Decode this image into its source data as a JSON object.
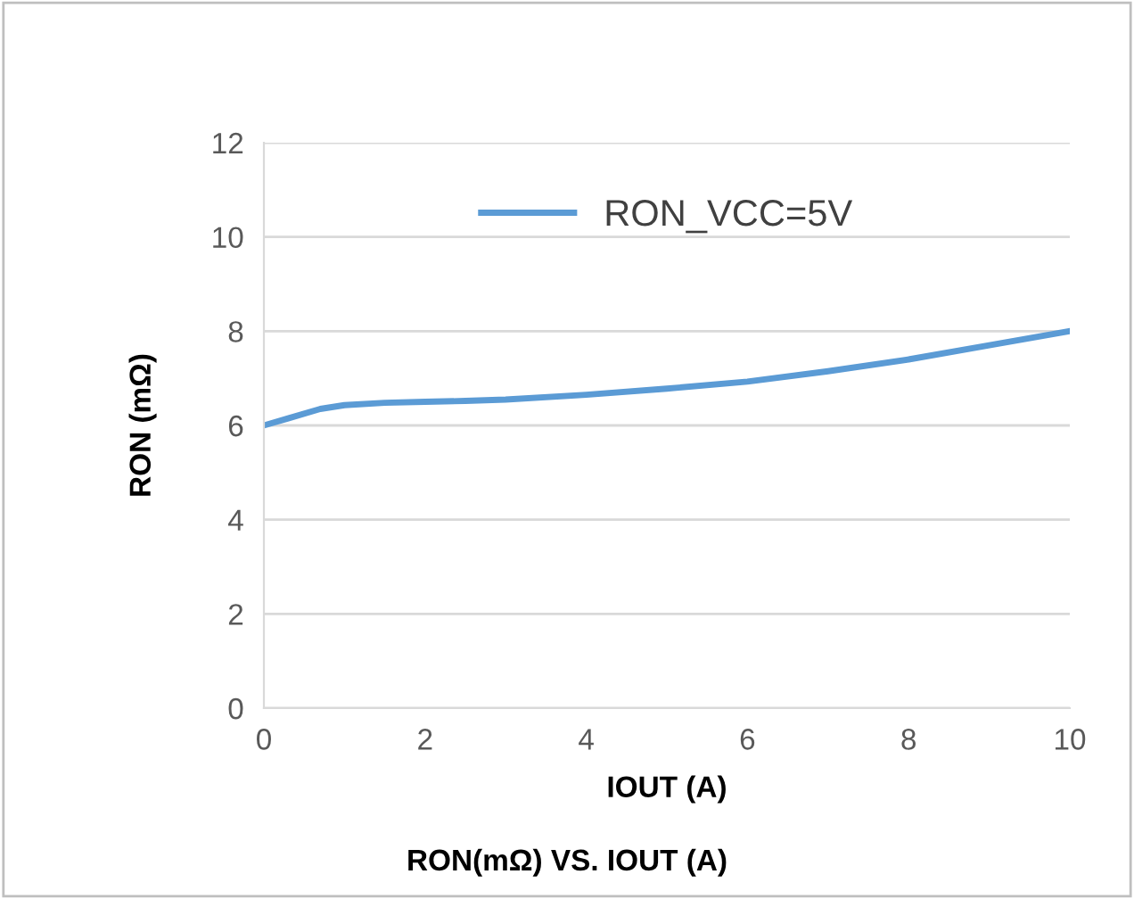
{
  "chart_data": {
    "type": "line",
    "title": "RON(mΩ) VS. IOUT (A)",
    "xlabel": "IOUT (A)",
    "ylabel": "RON (mΩ)",
    "series": [
      {
        "name": "RON_VCC=5V",
        "color": "#5b9bd5",
        "x": [
          0,
          0.3,
          0.7,
          1,
          1.5,
          2,
          2.5,
          3,
          4,
          5,
          6,
          7,
          8,
          9,
          10
        ],
        "values": [
          6.0,
          6.15,
          6.35,
          6.43,
          6.48,
          6.5,
          6.52,
          6.55,
          6.65,
          6.78,
          6.93,
          7.15,
          7.4,
          7.7,
          8.0
        ]
      }
    ],
    "xlim": [
      0,
      10
    ],
    "xticks": [
      0,
      2,
      4,
      6,
      8,
      10
    ],
    "ylim": [
      0,
      12
    ],
    "yticks": [
      0,
      2,
      4,
      6,
      8,
      10,
      12
    ],
    "grid": "y",
    "legend": "top",
    "marker": "none",
    "line_style": "solid"
  }
}
